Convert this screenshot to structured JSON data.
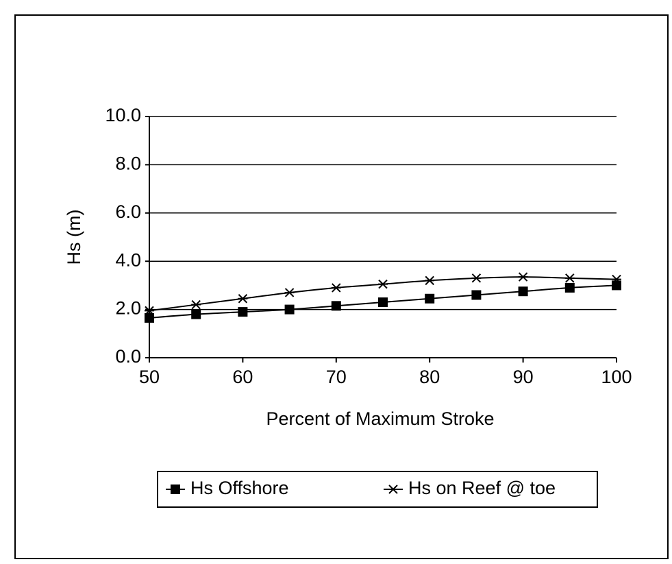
{
  "chart_data": {
    "type": "line",
    "x_label": "Percent of Maximum Stroke",
    "y_label": "Hs (m)",
    "x": [
      50,
      55,
      60,
      65,
      70,
      75,
      80,
      85,
      90,
      95,
      100
    ],
    "series": [
      {
        "name": "Hs Offshore",
        "color": "#000000",
        "marker": "square",
        "values": [
          1.65,
          1.8,
          1.9,
          2.0,
          2.15,
          2.3,
          2.45,
          2.6,
          2.75,
          2.9,
          3.0
        ]
      },
      {
        "name": "Hs on Reef @ toe",
        "color": "#000000",
        "marker": "x",
        "values": [
          1.95,
          2.2,
          2.45,
          2.7,
          2.9,
          3.05,
          3.2,
          3.3,
          3.35,
          3.3,
          3.25
        ]
      }
    ],
    "xlim": [
      50,
      100
    ],
    "xticks": [
      50,
      60,
      70,
      80,
      90,
      100
    ],
    "ylim": [
      0,
      10
    ],
    "yticks": [
      {
        "value": 0,
        "label": "0.0"
      },
      {
        "value": 2,
        "label": "2.0"
      },
      {
        "value": 4,
        "label": "4.0"
      },
      {
        "value": 6,
        "label": "6.0"
      },
      {
        "value": 8,
        "label": "8.0"
      },
      {
        "value": 10,
        "label": "10.0"
      }
    ],
    "grid": true,
    "smooth": true,
    "legend": "bottom"
  }
}
